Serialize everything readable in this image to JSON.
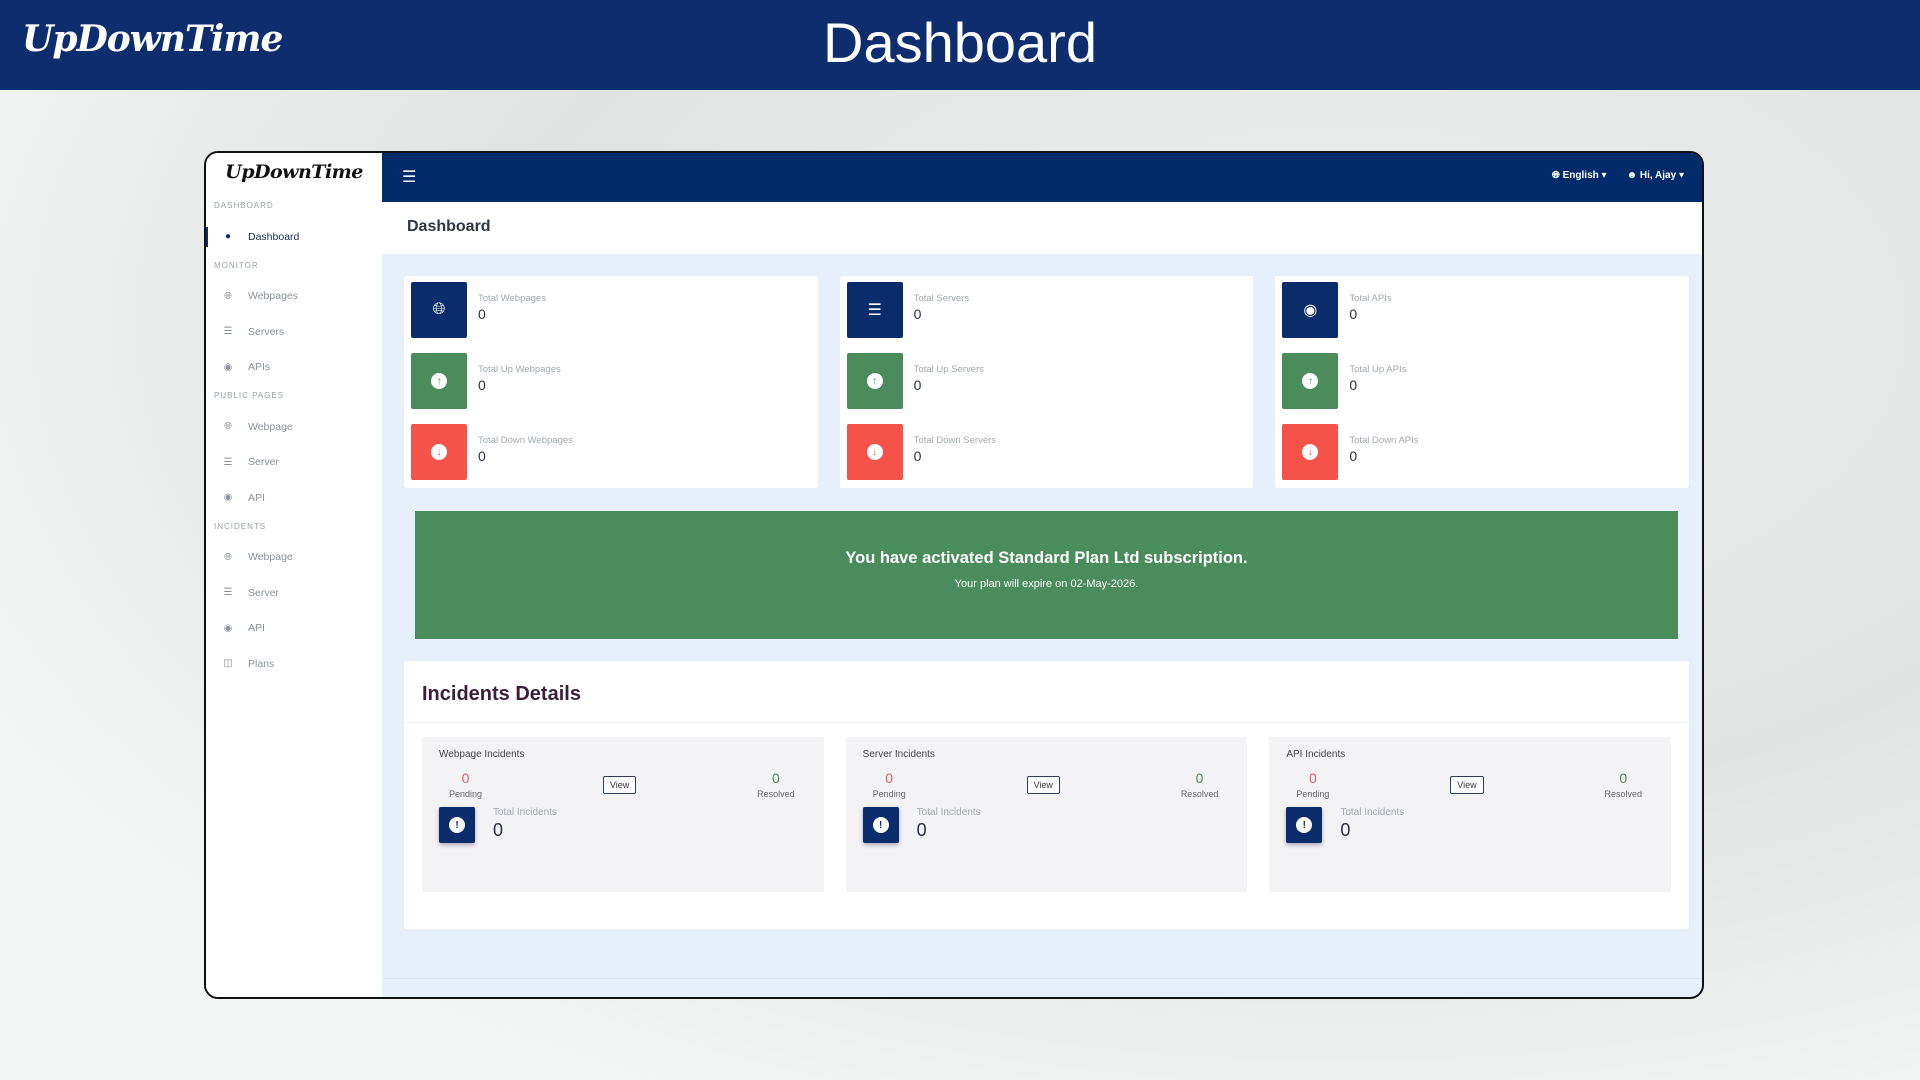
{
  "banner": {
    "logo": "UpDownTime",
    "title": "Dashboard"
  },
  "app": {
    "logo": "UpDownTime",
    "language": "English",
    "user": "Hi, Ajay",
    "page_title": "Dashboard"
  },
  "sidebar": {
    "sections": [
      {
        "label": "DASHBOARD",
        "items": [
          {
            "label": "Dashboard",
            "icon": "dashboard-icon"
          }
        ]
      },
      {
        "label": "MONITOR",
        "items": [
          {
            "label": "Webpages",
            "icon": "globe-icon"
          },
          {
            "label": "Servers",
            "icon": "server-icon"
          },
          {
            "label": "APIs",
            "icon": "api-icon"
          }
        ]
      },
      {
        "label": "PUBLIC PAGES",
        "items": [
          {
            "label": "Webpage",
            "icon": "globe-icon"
          },
          {
            "label": "Server",
            "icon": "server-icon"
          },
          {
            "label": "API",
            "icon": "api-icon"
          }
        ]
      },
      {
        "label": "INCIDENTS",
        "items": [
          {
            "label": "Webpage",
            "icon": "globe-icon"
          },
          {
            "label": "Server",
            "icon": "server-icon"
          },
          {
            "label": "API",
            "icon": "api-icon"
          },
          {
            "label": "Plans",
            "icon": "plans-icon"
          }
        ]
      }
    ]
  },
  "stats": [
    [
      {
        "label": "Total Webpages",
        "value": "0"
      },
      {
        "label": "Total Up Webpages",
        "value": "0"
      },
      {
        "label": "Total Down Webpages",
        "value": "0"
      }
    ],
    [
      {
        "label": "Total Servers",
        "value": "0"
      },
      {
        "label": "Total Up Servers",
        "value": "0"
      },
      {
        "label": "Total Down Servers",
        "value": "0"
      }
    ],
    [
      {
        "label": "Total APIs",
        "value": "0"
      },
      {
        "label": "Total Up APIs",
        "value": "0"
      },
      {
        "label": "Total Down APIs",
        "value": "0"
      }
    ]
  ],
  "plan": {
    "title": "You have activated Standard Plan Ltd subscription.",
    "expiry": "Your plan will expire on 02-May-2026."
  },
  "incidents": {
    "title": "Incidents Details",
    "pending_label": "Pending",
    "resolved_label": "Resolved",
    "view_label": "View",
    "total_label": "Total Incidents",
    "cards": [
      {
        "title": "Webpage Incidents",
        "pending": "0",
        "resolved": "0",
        "total": "0"
      },
      {
        "title": "Server Incidents",
        "pending": "0",
        "resolved": "0",
        "total": "0"
      },
      {
        "title": "API Incidents",
        "pending": "0",
        "resolved": "0",
        "total": "0"
      }
    ]
  },
  "colors": {
    "navy": "#0b2c6a",
    "green": "#4c8b5c",
    "red": "#f5524a"
  }
}
